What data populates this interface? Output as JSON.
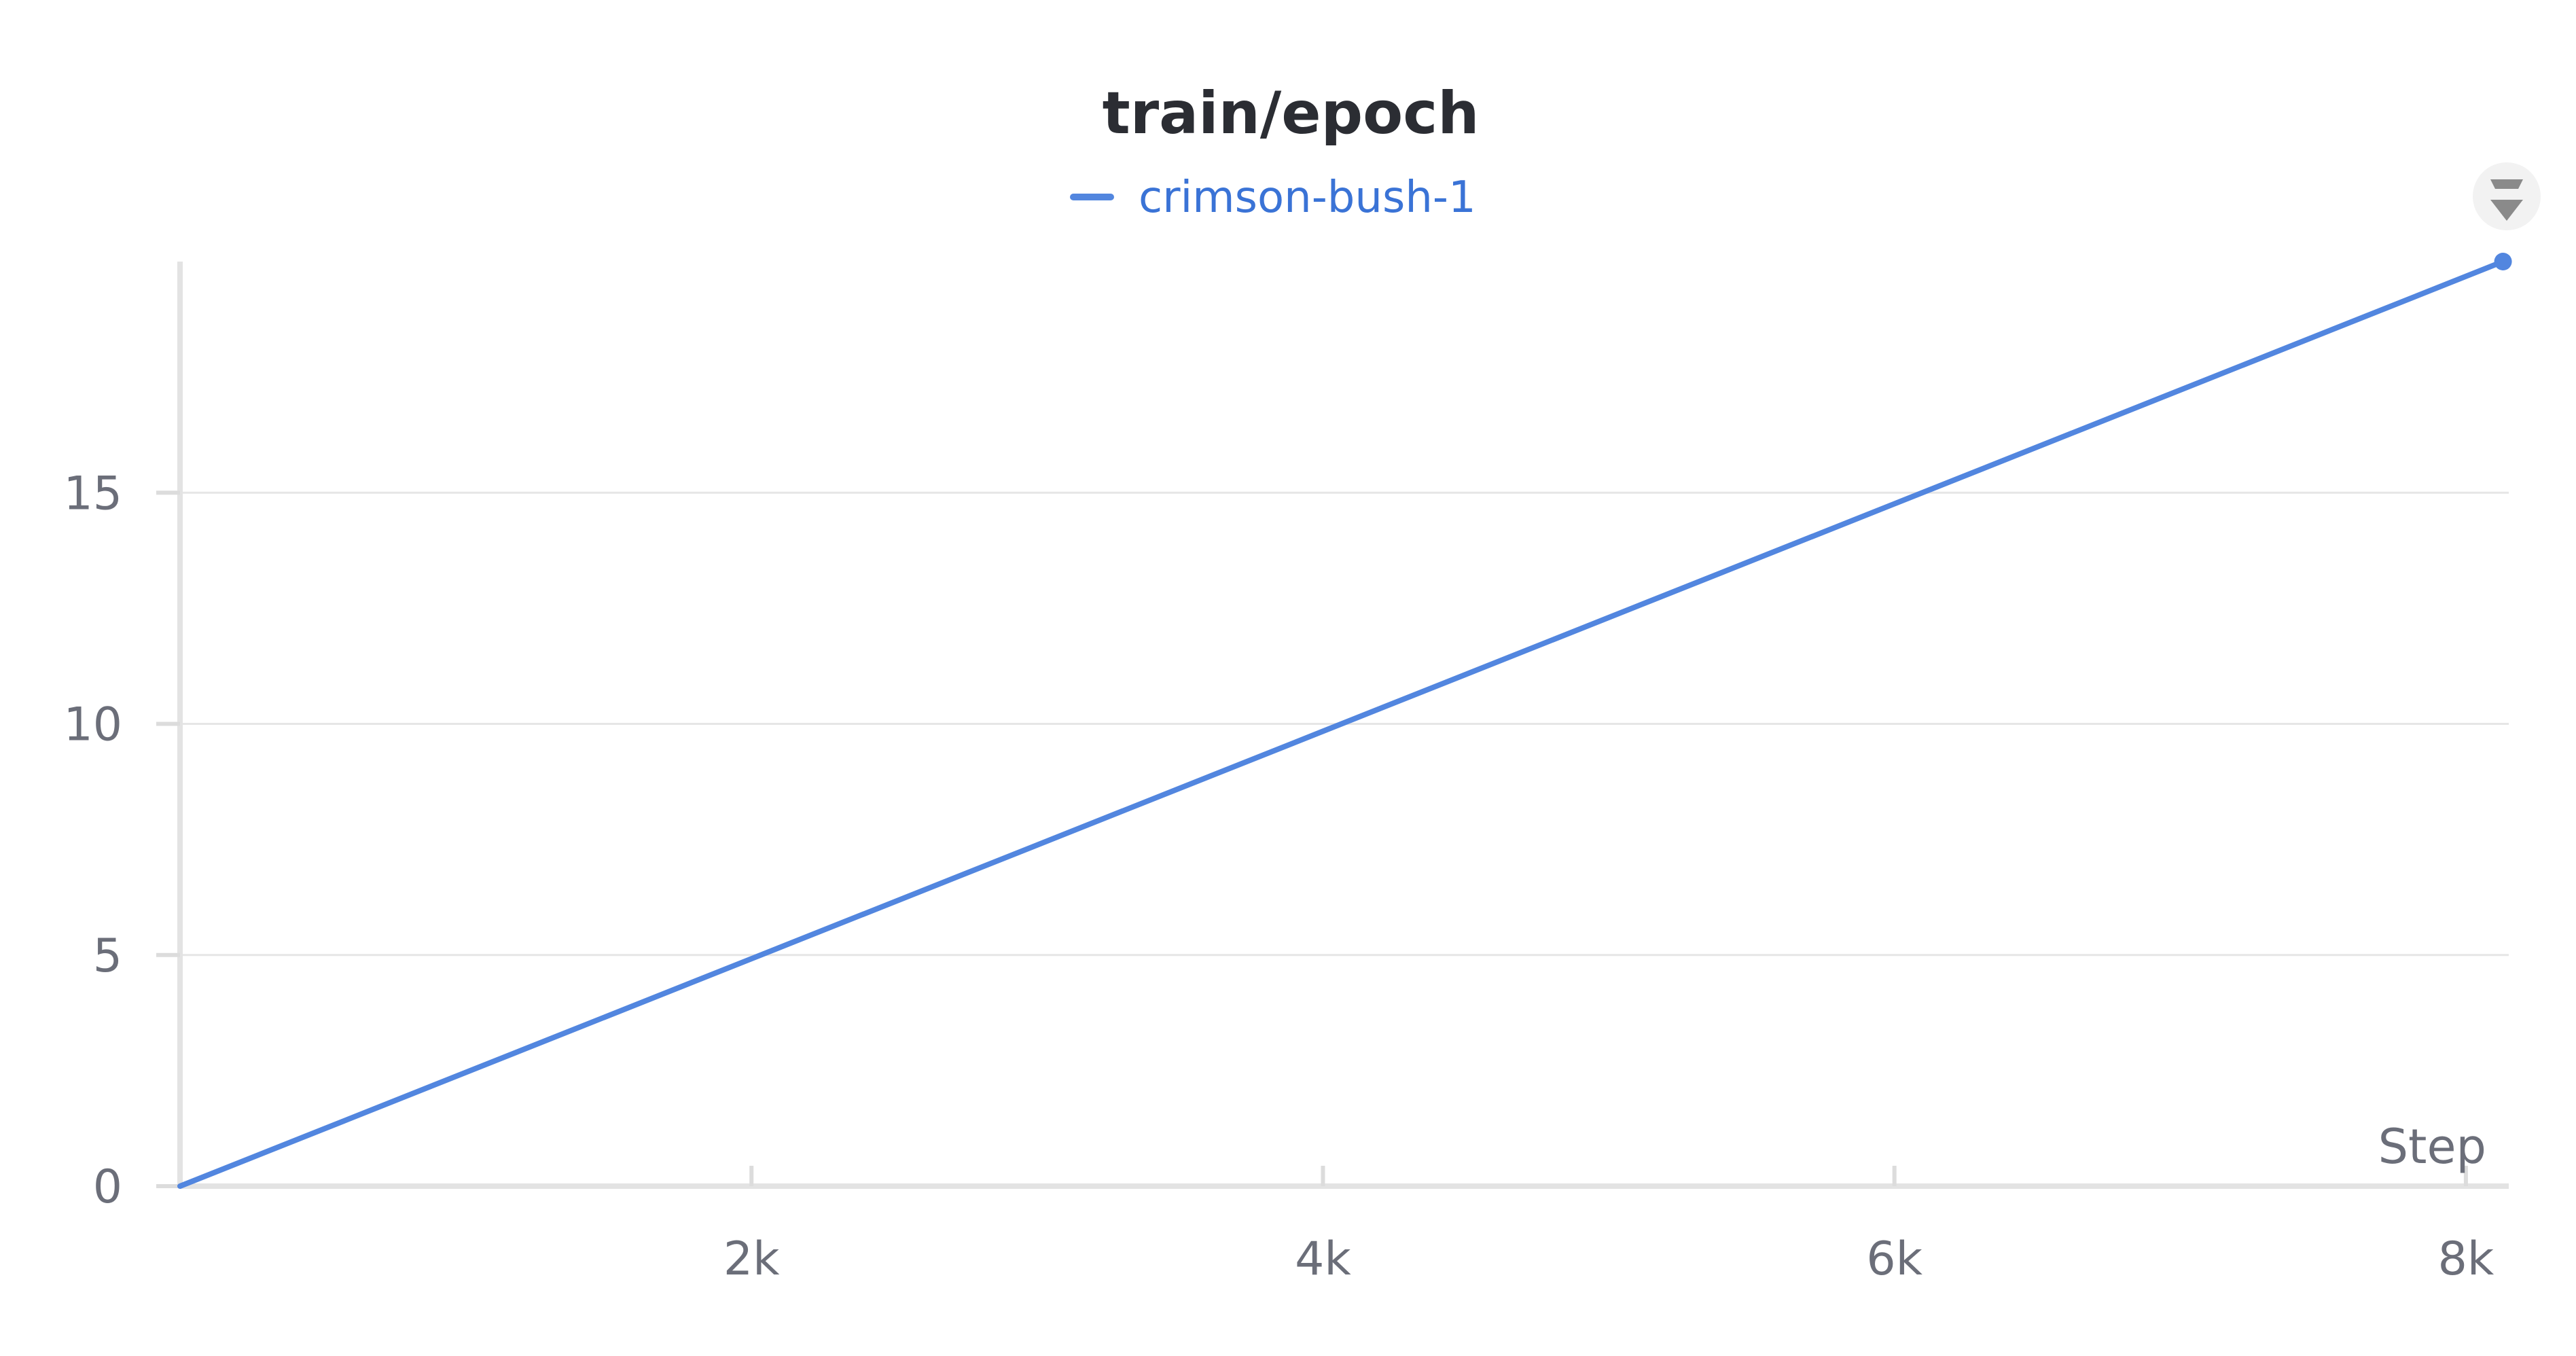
{
  "chart_data": {
    "type": "line",
    "title": "train/epoch",
    "xlabel": "Step",
    "ylabel": "",
    "xlim": [
      0,
      8150
    ],
    "ylim": [
      0,
      20
    ],
    "x_ticks": [
      2000,
      4000,
      6000,
      8000
    ],
    "x_tick_labels": [
      "2k",
      "4k",
      "6k",
      "8k"
    ],
    "y_ticks": [
      0,
      5,
      10,
      15
    ],
    "y_tick_labels": [
      "0",
      "5",
      "10",
      "15"
    ],
    "grid": true,
    "legend_position": "top-center",
    "series": [
      {
        "name": "crimson-bush-1",
        "color": "#5286df",
        "x": [
          0,
          2000,
          4000,
          6000,
          8130
        ],
        "y": [
          0,
          4.92,
          9.84,
          14.76,
          20
        ]
      }
    ]
  },
  "icons": {
    "menu": "drag-handle-icon"
  }
}
